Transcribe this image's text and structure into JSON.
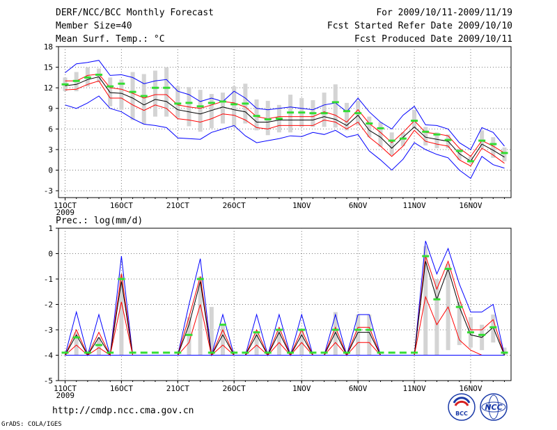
{
  "header": {
    "title": "DERF/NCC/BCC Monthly Forecast",
    "member_size": "Member Size=40",
    "variable": "Mean Surf. Temp.: °C",
    "period": "For 2009/10/11-2009/11/19",
    "started": "Fcst Started Refer Date 2009/10/10",
    "produced": "Fcst Produced Date 2009/10/11"
  },
  "footer": {
    "url": "http://cmdp.ncc.cma.gov.cn",
    "grads": "GrADS: COLA/IGES",
    "logo1_text": "BCC",
    "logo2_text": "NCC"
  },
  "colors": {
    "envelope": "#0000ff",
    "spread": "#ff0000",
    "mean": "#000000",
    "bars": "#d4d4d4",
    "ticks": "#33dd33"
  },
  "chart_data": [
    {
      "type": "line",
      "title": "Mean Surf. Temp.: °C",
      "ylabel": "°C",
      "ylim": [
        -4,
        18
      ],
      "yticks": [
        -3,
        0,
        3,
        6,
        9,
        12,
        15,
        18
      ],
      "year_label": "2009",
      "xlabels": [
        {
          "day": 0,
          "label": "11OCT"
        },
        {
          "day": 5,
          "label": "16OCT"
        },
        {
          "day": 10,
          "label": "21OCT"
        },
        {
          "day": 15,
          "label": "26OCT"
        },
        {
          "day": 21,
          "label": "1NOV"
        },
        {
          "day": 26,
          "label": "6NOV"
        },
        {
          "day": 31,
          "label": "11NOV"
        },
        {
          "day": 36,
          "label": "16NOV"
        }
      ],
      "days": 40,
      "series": [
        {
          "name": "max",
          "values": [
            14.2,
            15.5,
            15.7,
            16.0,
            13.8,
            13.9,
            13.5,
            12.6,
            13.0,
            13.2,
            11.5,
            11.0,
            10.0,
            10.5,
            10.0,
            11.5,
            10.5,
            9.0,
            8.8,
            9.0,
            9.2,
            9.0,
            8.8,
            9.5,
            9.8,
            8.5,
            10.5,
            8.5,
            7.0,
            6.0,
            8.0,
            9.3,
            6.6,
            6.5,
            6.0,
            4.0,
            3.0,
            6.2,
            5.5,
            3.5
          ]
        },
        {
          "name": "upper",
          "values": [
            13.0,
            13.0,
            13.8,
            14.0,
            12.0,
            11.8,
            11.2,
            10.5,
            11.0,
            11.0,
            9.5,
            9.2,
            9.0,
            9.5,
            10.0,
            9.8,
            9.2,
            7.8,
            7.5,
            7.8,
            7.8,
            7.8,
            7.8,
            8.5,
            8.0,
            7.0,
            8.8,
            6.8,
            5.5,
            4.0,
            5.5,
            7.2,
            5.5,
            5.3,
            5.0,
            3.2,
            2.0,
            4.3,
            3.5,
            2.5
          ]
        },
        {
          "name": "mean",
          "values": [
            12.3,
            12.5,
            13.2,
            13.6,
            11.3,
            11.2,
            10.5,
            9.5,
            10.3,
            10.0,
            8.8,
            8.5,
            8.2,
            8.7,
            9.2,
            8.8,
            8.5,
            7.0,
            7.0,
            7.3,
            7.3,
            7.3,
            7.3,
            7.8,
            7.4,
            6.5,
            8.0,
            5.8,
            4.8,
            3.2,
            4.8,
            6.3,
            4.8,
            4.5,
            4.2,
            2.4,
            1.3,
            3.8,
            2.9,
            1.9
          ]
        },
        {
          "name": "lower",
          "values": [
            11.7,
            11.8,
            12.5,
            13.0,
            10.5,
            10.5,
            9.5,
            8.7,
            9.5,
            9.0,
            7.5,
            7.3,
            7.0,
            7.5,
            8.2,
            8.0,
            7.3,
            6.2,
            6.0,
            6.5,
            6.5,
            6.5,
            6.5,
            7.3,
            7.0,
            6.0,
            7.0,
            4.8,
            3.5,
            2.0,
            3.5,
            5.8,
            4.2,
            3.8,
            3.5,
            1.5,
            0.6,
            3.2,
            2.2,
            1.0
          ]
        },
        {
          "name": "min",
          "values": [
            9.5,
            9.0,
            9.8,
            10.8,
            9.0,
            8.5,
            7.5,
            6.7,
            6.5,
            6.2,
            4.7,
            4.6,
            4.5,
            5.5,
            6.0,
            6.5,
            5.0,
            4.0,
            4.3,
            4.6,
            5.0,
            4.9,
            5.5,
            5.2,
            5.8,
            4.8,
            5.2,
            2.8,
            1.5,
            0.0,
            1.6,
            4.0,
            3.0,
            2.3,
            1.8,
            0.0,
            -1.2,
            2.0,
            0.8,
            0.3
          ]
        }
      ],
      "bars": [
        {
          "low": 11.5,
          "high": 13.5
        },
        {
          "low": 11.5,
          "high": 14.3
        },
        {
          "low": 12.2,
          "high": 15.0
        },
        {
          "low": 12.8,
          "high": 14.8
        },
        {
          "low": 9.3,
          "high": 13.5
        },
        {
          "low": 8.8,
          "high": 13.2
        },
        {
          "low": 7.3,
          "high": 14.3
        },
        {
          "low": 6.7,
          "high": 14.0
        },
        {
          "low": 7.8,
          "high": 14.5
        },
        {
          "low": 7.8,
          "high": 15.0
        },
        {
          "low": 7.6,
          "high": 12.2
        },
        {
          "low": 6.4,
          "high": 12.1
        },
        {
          "low": 5.6,
          "high": 11.7
        },
        {
          "low": 6.1,
          "high": 11.1
        },
        {
          "low": 6.8,
          "high": 11.3
        },
        {
          "low": 6.3,
          "high": 12.2
        },
        {
          "low": 6.8,
          "high": 12.6
        },
        {
          "low": 5.8,
          "high": 10.3
        },
        {
          "low": 5.1,
          "high": 10.1
        },
        {
          "low": 5.5,
          "high": 9.5
        },
        {
          "low": 5.5,
          "high": 11.0
        },
        {
          "low": 6.3,
          "high": 10.5
        },
        {
          "low": 6.3,
          "high": 10.2
        },
        {
          "low": 6.3,
          "high": 11.3
        },
        {
          "low": 6.2,
          "high": 12.5
        },
        {
          "low": 5.8,
          "high": 9.8
        },
        {
          "low": 6.5,
          "high": 10.1
        },
        {
          "low": 4.8,
          "high": 7.8
        },
        {
          "low": 3.4,
          "high": 7.0
        },
        {
          "low": 2.2,
          "high": 5.5
        },
        {
          "low": 3.5,
          "high": 5.5
        },
        {
          "low": 6.0,
          "high": 8.8
        },
        {
          "low": 3.6,
          "high": 6.3
        },
        {
          "low": 3.2,
          "high": 5.5
        },
        {
          "low": 3.2,
          "high": 5.2
        },
        {
          "low": 1.5,
          "high": 3.1
        },
        {
          "low": 1.0,
          "high": 2.0
        },
        {
          "low": 3.2,
          "high": 5.8
        },
        {
          "low": 1.8,
          "high": 4.8
        },
        {
          "low": 1.3,
          "high": 3.3
        }
      ],
      "obs_ticks": [
        12.5,
        13.0,
        13.5,
        13.9,
        12.2,
        12.6,
        11.4,
        10.8,
        12.0,
        12.0,
        9.7,
        9.8,
        9.3,
        9.8,
        10.0,
        9.6,
        9.7,
        7.9,
        7.4,
        7.5,
        8.4,
        8.4,
        8.3,
        8.3,
        9.9,
        8.6,
        8.3,
        6.8,
        6.1,
        4.3,
        4.6,
        7.2,
        5.6,
        5.2,
        4.4,
        2.8,
        1.3,
        4.3,
        3.8,
        2.5
      ]
    },
    {
      "type": "line",
      "title": "Prec.: log(mm/d)",
      "ylabel": "log(mm/d)",
      "ylim": [
        -5,
        1
      ],
      "yticks": [
        -5,
        -4,
        -3,
        -2,
        -1,
        0,
        1
      ],
      "year_label": "2009",
      "xlabels": [
        {
          "day": 0,
          "label": "11OCT"
        },
        {
          "day": 5,
          "label": "16OCT"
        },
        {
          "day": 10,
          "label": "21OCT"
        },
        {
          "day": 15,
          "label": "26OCT"
        },
        {
          "day": 21,
          "label": "1NOV"
        },
        {
          "day": 26,
          "label": "6NOV"
        },
        {
          "day": 31,
          "label": "11NOV"
        },
        {
          "day": 36,
          "label": "16NOV"
        }
      ],
      "days": 40,
      "series": [
        {
          "name": "max",
          "values": [
            -4.0,
            -2.3,
            -4.0,
            -2.4,
            -4.0,
            -0.1,
            -4.0,
            -4.0,
            -4.0,
            -4.0,
            -4.0,
            -2.0,
            -0.2,
            -4.0,
            -2.4,
            -4.0,
            -4.0,
            -2.4,
            -4.0,
            -2.4,
            -4.0,
            -2.4,
            -4.0,
            -4.0,
            -2.4,
            -4.0,
            -2.4,
            -2.4,
            -4.0,
            -4.0,
            -4.0,
            -4.0,
            0.5,
            -0.8,
            0.2,
            -1.2,
            -2.3,
            -2.3,
            -2.0,
            -4.0
          ]
        },
        {
          "name": "upper",
          "values": [
            -4.0,
            -3.0,
            -4.0,
            -3.1,
            -4.0,
            -0.8,
            -4.0,
            -4.0,
            -4.0,
            -4.0,
            -4.0,
            -2.5,
            -0.9,
            -4.0,
            -3.0,
            -4.0,
            -4.0,
            -3.0,
            -4.0,
            -2.9,
            -4.0,
            -3.0,
            -4.0,
            -4.0,
            -2.9,
            -4.0,
            -2.9,
            -2.9,
            -4.0,
            -4.0,
            -4.0,
            -4.0,
            -0.1,
            -1.4,
            -0.3,
            -1.8,
            -3.0,
            -3.0,
            -2.6,
            -4.0
          ]
        },
        {
          "name": "mean",
          "values": [
            -4.0,
            -3.2,
            -4.0,
            -3.3,
            -4.0,
            -1.1,
            -4.0,
            -4.0,
            -4.0,
            -4.0,
            -4.0,
            -2.8,
            -1.1,
            -4.0,
            -3.2,
            -4.0,
            -4.0,
            -3.2,
            -4.0,
            -3.1,
            -4.0,
            -3.2,
            -4.0,
            -4.0,
            -3.1,
            -4.0,
            -3.1,
            -3.1,
            -4.0,
            -4.0,
            -4.0,
            -4.0,
            -0.3,
            -1.8,
            -0.6,
            -2.1,
            -3.2,
            -3.3,
            -2.9,
            -4.0
          ]
        },
        {
          "name": "lower",
          "values": [
            -4.0,
            -3.6,
            -4.0,
            -3.7,
            -4.0,
            -1.9,
            -4.0,
            -4.0,
            -4.0,
            -4.0,
            -4.0,
            -3.5,
            -2.0,
            -4.0,
            -3.6,
            -4.0,
            -4.0,
            -3.6,
            -4.0,
            -3.5,
            -4.0,
            -3.5,
            -4.0,
            -4.0,
            -3.5,
            -4.0,
            -3.5,
            -3.5,
            -4.0,
            -4.0,
            -4.0,
            -4.0,
            -1.7,
            -2.8,
            -2.1,
            -3.4,
            -3.8,
            -4.0,
            -4.0,
            -4.0
          ]
        },
        {
          "name": "min",
          "values": [
            -4.0,
            -4.0,
            -4.0,
            -4.0,
            -4.0,
            -4.0,
            -4.0,
            -4.0,
            -4.0,
            -4.0,
            -4.0,
            -4.0,
            -4.0,
            -4.0,
            -4.0,
            -4.0,
            -4.0,
            -4.0,
            -4.0,
            -4.0,
            -4.0,
            -4.0,
            -4.0,
            -4.0,
            -4.0,
            -4.0,
            -4.0,
            -4.0,
            -4.0,
            -4.0,
            -4.0,
            -4.0,
            -4.0,
            -4.0,
            -4.0,
            -4.0,
            -4.0,
            -4.0,
            -4.0,
            -4.0
          ]
        }
      ],
      "bars": [
        {
          "low": -4.0,
          "high": -4.0
        },
        {
          "low": -4.0,
          "high": -3.1
        },
        {
          "low": -4.0,
          "high": -4.0
        },
        {
          "low": -4.0,
          "high": -3.3
        },
        {
          "low": -4.0,
          "high": -4.0
        },
        {
          "low": -4.0,
          "high": -0.8
        },
        {
          "low": -4.0,
          "high": -4.0
        },
        {
          "low": -4.0,
          "high": -4.0
        },
        {
          "low": -4.0,
          "high": -4.0
        },
        {
          "low": -4.0,
          "high": -4.0
        },
        {
          "low": -4.0,
          "high": -4.0
        },
        {
          "low": -4.0,
          "high": -2.5
        },
        {
          "low": -4.0,
          "high": -0.9
        },
        {
          "low": -4.0,
          "high": -2.1
        },
        {
          "low": -4.0,
          "high": -2.8
        },
        {
          "low": -4.0,
          "high": -4.0
        },
        {
          "low": -4.0,
          "high": -4.0
        },
        {
          "low": -4.0,
          "high": -3.1
        },
        {
          "low": -4.0,
          "high": -4.0
        },
        {
          "low": -4.0,
          "high": -3.0
        },
        {
          "low": -4.0,
          "high": -4.0
        },
        {
          "low": -4.0,
          "high": -3.0
        },
        {
          "low": -4.0,
          "high": -4.0
        },
        {
          "low": -4.0,
          "high": -4.0
        },
        {
          "low": -4.0,
          "high": -2.3
        },
        {
          "low": -4.0,
          "high": -4.0
        },
        {
          "low": -4.0,
          "high": -2.4
        },
        {
          "low": -4.0,
          "high": -2.4
        },
        {
          "low": -4.0,
          "high": -4.0
        },
        {
          "low": -4.0,
          "high": -4.0
        },
        {
          "low": -4.0,
          "high": -4.0
        },
        {
          "low": -4.0,
          "high": -4.0
        },
        {
          "low": -4.0,
          "high": 0.3
        },
        {
          "low": -4.0,
          "high": -1.0
        },
        {
          "low": -3.8,
          "high": -0.4
        },
        {
          "low": -3.6,
          "high": -1.9
        },
        {
          "low": -3.7,
          "high": -2.5
        },
        {
          "low": -3.8,
          "high": -2.8
        },
        {
          "low": -3.5,
          "high": -2.4
        },
        {
          "low": -4.0,
          "high": -3.7
        }
      ],
      "obs_ticks": [
        -3.9,
        -3.3,
        -3.9,
        -3.6,
        -3.9,
        -1.0,
        -3.9,
        -3.9,
        -3.9,
        -3.9,
        -3.9,
        -3.2,
        -1.0,
        -3.9,
        -2.8,
        -3.9,
        -3.9,
        -3.1,
        -3.9,
        -3.0,
        -3.9,
        -3.0,
        -3.9,
        -3.9,
        -3.0,
        -3.9,
        -3.0,
        -3.0,
        -3.9,
        -3.9,
        -3.9,
        -3.9,
        -0.1,
        -1.8,
        -0.6,
        -2.1,
        -3.1,
        -3.2,
        -2.9,
        -3.9
      ]
    }
  ]
}
